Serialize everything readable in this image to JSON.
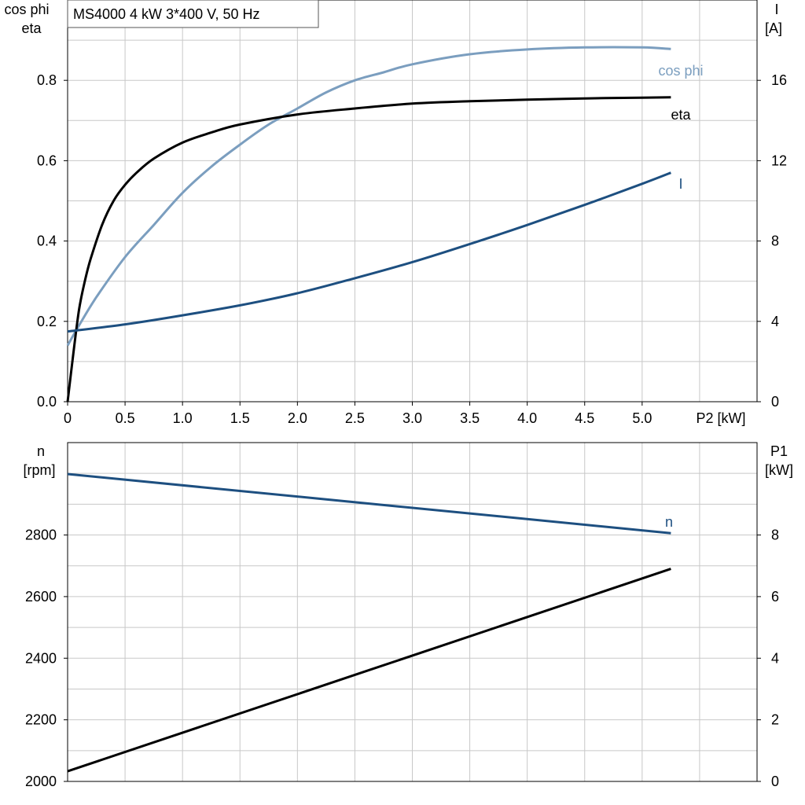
{
  "chart_data": [
    {
      "type": "line",
      "title": "MS4000   4 kW   3*400 V, 50 Hz",
      "xlabel": "P2 [kW]",
      "ylabel_left": [
        "cos phi",
        "eta"
      ],
      "ylabel_right": [
        "I",
        "[A]"
      ],
      "xlim": [
        0,
        6
      ],
      "xticks": [
        0,
        0.5,
        1.0,
        1.5,
        2.0,
        2.5,
        3.0,
        3.5,
        4.0,
        4.5,
        5.0
      ],
      "xtick_labels": [
        "0",
        "0.5",
        "1.0",
        "1.5",
        "2.0",
        "2.5",
        "3.0",
        "3.5",
        "4.0",
        "4.5",
        "5.0"
      ],
      "ylim_left": [
        0,
        1.0
      ],
      "yticks_left": [
        0,
        0.2,
        0.4,
        0.6,
        0.8
      ],
      "ytick_labels_left": [
        "0.0",
        "0.2",
        "0.4",
        "0.6",
        "0.8"
      ],
      "ylim_right": [
        0,
        20
      ],
      "yticks_right": [
        0,
        4,
        8,
        12,
        16
      ],
      "ytick_labels_right": [
        "0",
        "4",
        "8",
        "12",
        "16"
      ],
      "grid": true,
      "series": [
        {
          "name": "cos phi",
          "axis": "left",
          "color": "#7b9ebf",
          "x": [
            0,
            0.1,
            0.25,
            0.5,
            0.75,
            1.0,
            1.25,
            1.5,
            1.75,
            2.0,
            2.25,
            2.5,
            2.75,
            3.0,
            3.5,
            4.0,
            4.5,
            5.0,
            5.25
          ],
          "y": [
            0.14,
            0.19,
            0.26,
            0.36,
            0.44,
            0.52,
            0.585,
            0.64,
            0.69,
            0.73,
            0.77,
            0.8,
            0.82,
            0.84,
            0.865,
            0.877,
            0.882,
            0.882,
            0.878
          ]
        },
        {
          "name": "eta",
          "axis": "left",
          "color": "#000000",
          "x": [
            0,
            0.05,
            0.1,
            0.15,
            0.2,
            0.3,
            0.4,
            0.5,
            0.6,
            0.75,
            1.0,
            1.25,
            1.5,
            2.0,
            2.5,
            3.0,
            3.5,
            4.0,
            4.5,
            5.0,
            5.25
          ],
          "y": [
            0.0,
            0.12,
            0.23,
            0.3,
            0.355,
            0.44,
            0.5,
            0.54,
            0.57,
            0.605,
            0.645,
            0.67,
            0.69,
            0.715,
            0.73,
            0.742,
            0.748,
            0.752,
            0.755,
            0.757,
            0.758
          ]
        },
        {
          "name": "I",
          "axis": "right",
          "color": "#1d4f80",
          "x": [
            0,
            0.5,
            1.0,
            1.5,
            2.0,
            2.5,
            3.0,
            3.5,
            4.0,
            4.5,
            5.0,
            5.25
          ],
          "y": [
            3.5,
            3.85,
            4.3,
            4.8,
            5.4,
            6.15,
            6.95,
            7.85,
            8.8,
            9.8,
            10.85,
            11.4
          ]
        }
      ]
    },
    {
      "type": "line",
      "xlim": [
        0,
        6
      ],
      "xticks": [
        0,
        0.5,
        1.0,
        1.5,
        2.0,
        2.5,
        3.0,
        3.5,
        4.0,
        4.5,
        5.0
      ],
      "ylabel_left": [
        "n",
        "[rpm]"
      ],
      "ylabel_right": [
        "P1",
        "[kW]"
      ],
      "ylim_left": [
        2000,
        3100
      ],
      "yticks_left": [
        2000,
        2200,
        2400,
        2600,
        2800
      ],
      "ytick_labels_left": [
        "2000",
        "2200",
        "2400",
        "2600",
        "2800"
      ],
      "ylim_right": [
        0,
        11
      ],
      "yticks_right": [
        0,
        2,
        4,
        6,
        8
      ],
      "ytick_labels_right": [
        "0",
        "2",
        "4",
        "6",
        "8"
      ],
      "grid": true,
      "series": [
        {
          "name": "n",
          "axis": "left",
          "color": "#1d4f80",
          "x": [
            0,
            5.25
          ],
          "y": [
            2998,
            2806
          ]
        },
        {
          "name": "",
          "axis": "right",
          "color": "#000000",
          "x": [
            0,
            5.25
          ],
          "y": [
            0.33,
            6.9
          ]
        }
      ]
    }
  ]
}
